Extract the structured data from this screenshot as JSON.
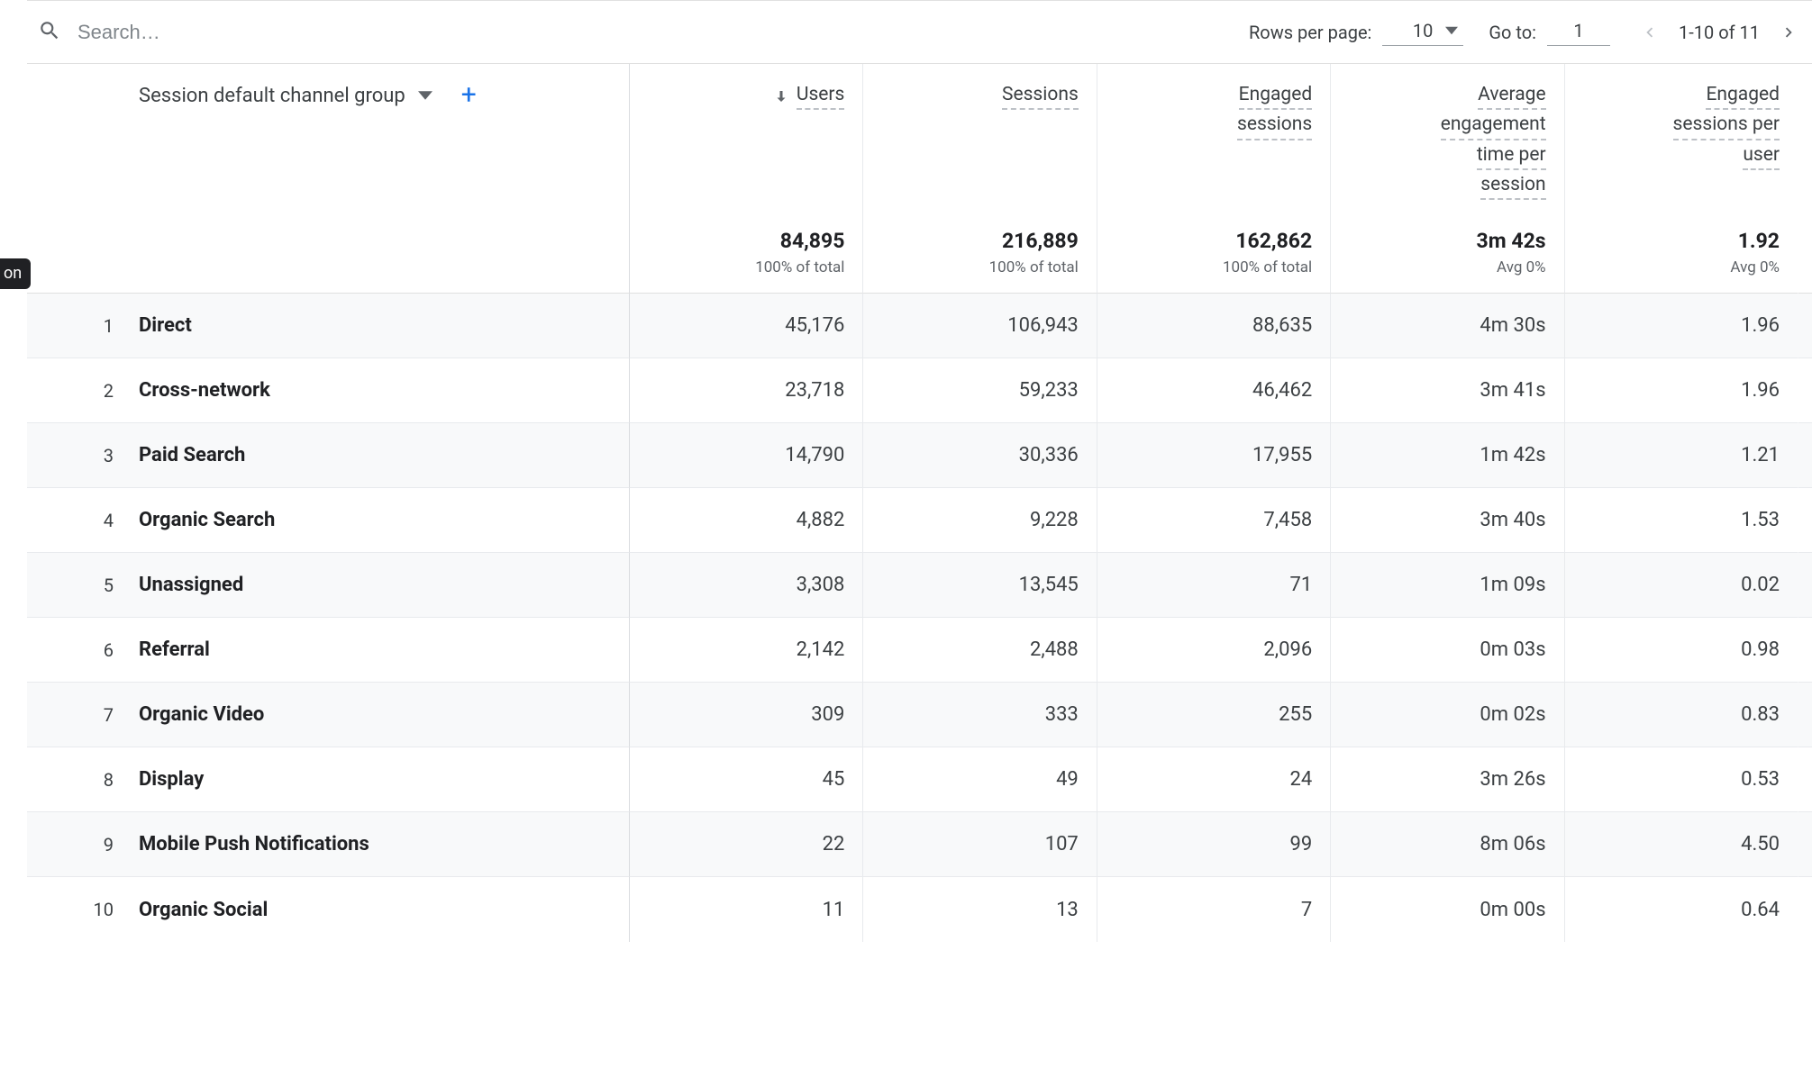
{
  "colors": {
    "text_primary": "#202124",
    "text_secondary": "#5f6368",
    "border": "#e0e0e0",
    "border_light": "#e8eaed",
    "row_alt_bg": "#f8f9fa",
    "accent_blue": "#1a73e8",
    "dashed_underline": "#bdc1c6"
  },
  "toolbar": {
    "search_placeholder": "Search…",
    "rows_per_page_label": "Rows per page:",
    "rows_per_page_value": "10",
    "goto_label": "Go to:",
    "goto_value": "1",
    "page_range": "1-10 of 11"
  },
  "rail_text": "on",
  "dimension": {
    "label": "Session default channel group"
  },
  "columns": [
    {
      "id": "users",
      "lines": [
        "Users"
      ],
      "sorted": true
    },
    {
      "id": "sessions",
      "lines": [
        "Sessions"
      ],
      "sorted": false
    },
    {
      "id": "engaged_sessions",
      "lines": [
        "Engaged",
        "sessions"
      ],
      "sorted": false
    },
    {
      "id": "avg_engagement",
      "lines": [
        "Average",
        "engagement",
        "time per",
        "session"
      ],
      "sorted": false
    },
    {
      "id": "eng_per_user",
      "lines": [
        "Engaged",
        "sessions per",
        "user"
      ],
      "sorted": false
    }
  ],
  "summary": {
    "users": {
      "value": "84,895",
      "sub": "100% of total"
    },
    "sessions": {
      "value": "216,889",
      "sub": "100% of total"
    },
    "engaged_sessions": {
      "value": "162,862",
      "sub": "100% of total"
    },
    "avg_engagement": {
      "value": "3m 42s",
      "sub": "Avg 0%"
    },
    "eng_per_user": {
      "value": "1.92",
      "sub": "Avg 0%"
    }
  },
  "rows": [
    {
      "idx": "1",
      "dim": "Direct",
      "users": "45,176",
      "sessions": "106,943",
      "engaged_sessions": "88,635",
      "avg_engagement": "4m 30s",
      "eng_per_user": "1.96"
    },
    {
      "idx": "2",
      "dim": "Cross-network",
      "users": "23,718",
      "sessions": "59,233",
      "engaged_sessions": "46,462",
      "avg_engagement": "3m 41s",
      "eng_per_user": "1.96"
    },
    {
      "idx": "3",
      "dim": "Paid Search",
      "users": "14,790",
      "sessions": "30,336",
      "engaged_sessions": "17,955",
      "avg_engagement": "1m 42s",
      "eng_per_user": "1.21"
    },
    {
      "idx": "4",
      "dim": "Organic Search",
      "users": "4,882",
      "sessions": "9,228",
      "engaged_sessions": "7,458",
      "avg_engagement": "3m 40s",
      "eng_per_user": "1.53"
    },
    {
      "idx": "5",
      "dim": "Unassigned",
      "users": "3,308",
      "sessions": "13,545",
      "engaged_sessions": "71",
      "avg_engagement": "1m 09s",
      "eng_per_user": "0.02"
    },
    {
      "idx": "6",
      "dim": "Referral",
      "users": "2,142",
      "sessions": "2,488",
      "engaged_sessions": "2,096",
      "avg_engagement": "0m 03s",
      "eng_per_user": "0.98"
    },
    {
      "idx": "7",
      "dim": "Organic Video",
      "users": "309",
      "sessions": "333",
      "engaged_sessions": "255",
      "avg_engagement": "0m 02s",
      "eng_per_user": "0.83"
    },
    {
      "idx": "8",
      "dim": "Display",
      "users": "45",
      "sessions": "49",
      "engaged_sessions": "24",
      "avg_engagement": "3m 26s",
      "eng_per_user": "0.53"
    },
    {
      "idx": "9",
      "dim": "Mobile Push Notifications",
      "users": "22",
      "sessions": "107",
      "engaged_sessions": "99",
      "avg_engagement": "8m 06s",
      "eng_per_user": "4.50"
    },
    {
      "idx": "10",
      "dim": "Organic Social",
      "users": "11",
      "sessions": "13",
      "engaged_sessions": "7",
      "avg_engagement": "0m 00s",
      "eng_per_user": "0.64"
    }
  ]
}
